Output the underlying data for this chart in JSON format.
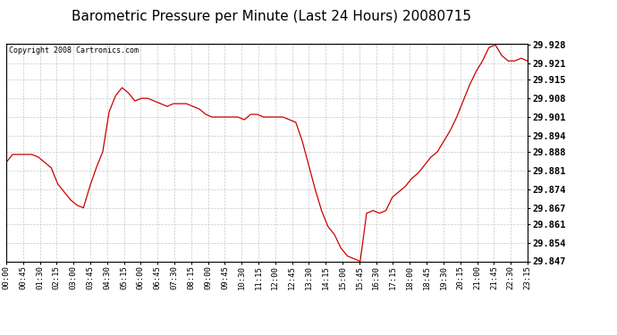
{
  "title": "Barometric Pressure per Minute (Last 24 Hours) 20080715",
  "copyright": "Copyright 2008 Cartronics.com",
  "line_color": "#cc0000",
  "background_color": "#ffffff",
  "grid_color": "#c8c8c8",
  "title_fontsize": 11,
  "ylabel_fontsize": 7.5,
  "xlabel_fontsize": 6.5,
  "copyright_fontsize": 6,
  "ylim": [
    29.847,
    29.9285
  ],
  "yticks": [
    29.847,
    29.854,
    29.861,
    29.867,
    29.874,
    29.881,
    29.888,
    29.894,
    29.901,
    29.908,
    29.915,
    29.921,
    29.928
  ],
  "x_labels": [
    "00:00",
    "00:45",
    "01:30",
    "02:15",
    "03:00",
    "03:45",
    "04:30",
    "05:15",
    "06:00",
    "06:45",
    "07:30",
    "08:15",
    "09:00",
    "09:45",
    "10:30",
    "11:15",
    "12:00",
    "12:45",
    "13:30",
    "14:15",
    "15:00",
    "15:45",
    "16:30",
    "17:15",
    "18:00",
    "18:45",
    "19:30",
    "20:15",
    "21:00",
    "21:45",
    "22:30",
    "23:15"
  ],
  "y_data": [
    29.884,
    29.887,
    29.887,
    29.887,
    29.887,
    29.886,
    29.884,
    29.882,
    29.876,
    29.873,
    29.87,
    29.868,
    29.867,
    29.875,
    29.882,
    29.888,
    29.903,
    29.909,
    29.912,
    29.91,
    29.907,
    29.908,
    29.908,
    29.907,
    29.906,
    29.905,
    29.906,
    29.906,
    29.906,
    29.905,
    29.904,
    29.902,
    29.901,
    29.901,
    29.901,
    29.901,
    29.901,
    29.9,
    29.902,
    29.902,
    29.901,
    29.901,
    29.901,
    29.901,
    29.9,
    29.899,
    29.892,
    29.883,
    29.874,
    29.866,
    29.86,
    29.857,
    29.852,
    29.849,
    29.848,
    29.847,
    29.865,
    29.866,
    29.865,
    29.866,
    29.871,
    29.873,
    29.875,
    29.878,
    29.88,
    29.883,
    29.886,
    29.888,
    29.892,
    29.896,
    29.901,
    29.907,
    29.913,
    29.918,
    29.922,
    29.927,
    29.928,
    29.924,
    29.922,
    29.922,
    29.923,
    29.922
  ]
}
